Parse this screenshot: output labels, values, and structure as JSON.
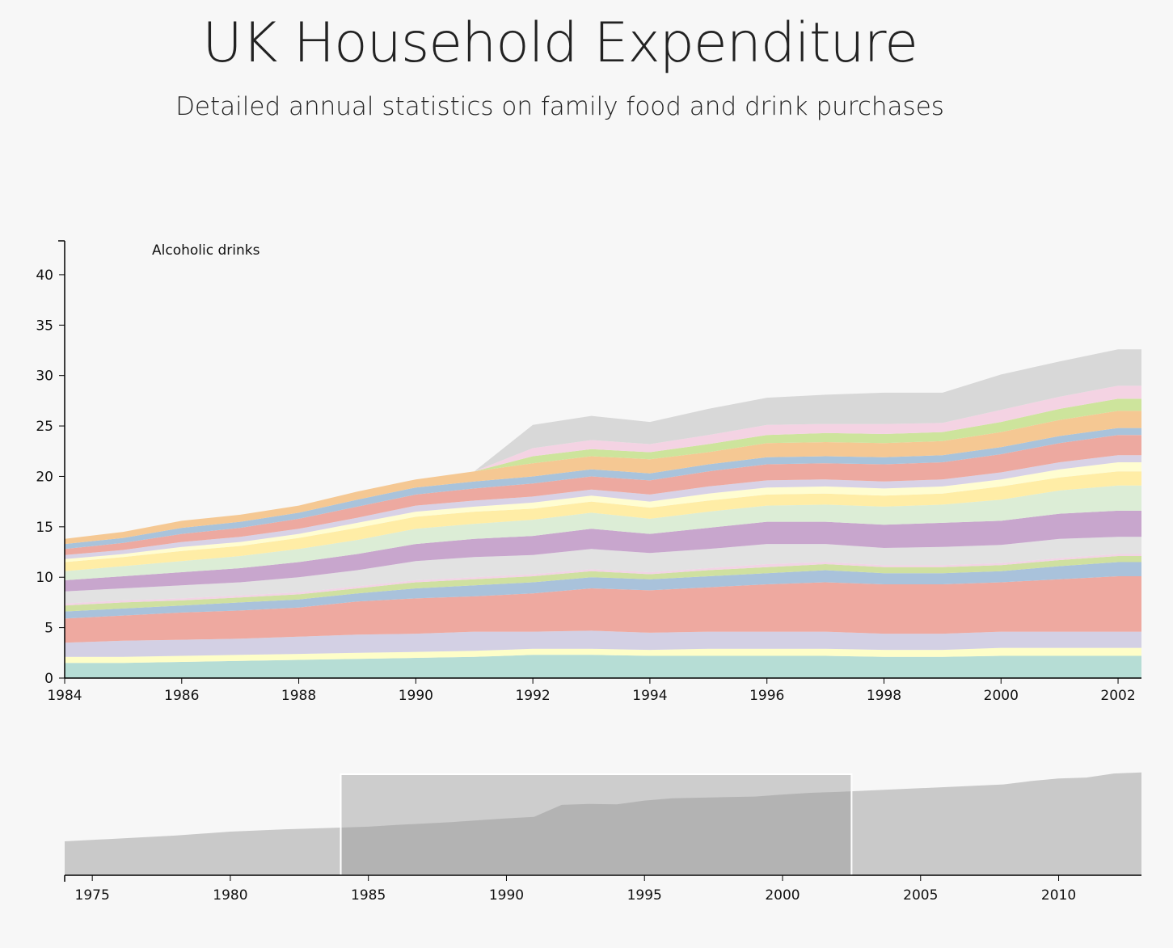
{
  "header": {
    "title": "UK Household Expenditure",
    "subtitle": "Detailed annual statistics on family food and drink purchases"
  },
  "chart_data": {
    "type": "area",
    "title": "UK Household Expenditure",
    "subtitle": "Detailed annual statistics on family food and drink purchases",
    "hover_label": "Alcoholic drinks",
    "x": [
      1984,
      1985,
      1986,
      1987,
      1988,
      1989,
      1990,
      1991,
      1992,
      1993,
      1994,
      1995,
      1996,
      1997,
      1998,
      1999,
      2000,
      2001,
      2002,
      2003
    ],
    "xlim": [
      1984,
      2002.4
    ],
    "ylim": [
      0,
      44
    ],
    "y_ticks": [
      0,
      5,
      10,
      15,
      20,
      25,
      30,
      35,
      40
    ],
    "x_ticks": [
      1984,
      1986,
      1988,
      1990,
      1992,
      1994,
      1996,
      1998,
      2000,
      2002
    ],
    "grid": false,
    "stacked": true,
    "series": [
      {
        "color": "#b6ddd5",
        "values": [
          1.5,
          1.5,
          1.6,
          1.7,
          1.8,
          1.9,
          2.0,
          2.1,
          2.3,
          2.3,
          2.2,
          2.2,
          2.2,
          2.2,
          2.1,
          2.1,
          2.2,
          2.2,
          2.2,
          2.2
        ]
      },
      {
        "color": "#fefec8",
        "values": [
          0.6,
          0.6,
          0.6,
          0.6,
          0.6,
          0.6,
          0.6,
          0.6,
          0.6,
          0.6,
          0.6,
          0.7,
          0.7,
          0.7,
          0.7,
          0.7,
          0.8,
          0.8,
          0.8,
          0.8
        ]
      },
      {
        "color": "#d3d0e4",
        "values": [
          1.4,
          1.6,
          1.6,
          1.6,
          1.7,
          1.8,
          1.8,
          1.9,
          1.7,
          1.8,
          1.7,
          1.7,
          1.7,
          1.7,
          1.6,
          1.6,
          1.6,
          1.6,
          1.6,
          1.6
        ]
      },
      {
        "color": "#eea9a0",
        "values": [
          2.4,
          2.5,
          2.7,
          2.8,
          2.9,
          3.3,
          3.5,
          3.5,
          3.8,
          4.2,
          4.2,
          4.4,
          4.7,
          4.9,
          4.9,
          4.9,
          4.9,
          5.2,
          5.5,
          5.5
        ]
      },
      {
        "color": "#a9c2db",
        "values": [
          0.7,
          0.7,
          0.7,
          0.8,
          0.8,
          0.8,
          1.0,
          1.1,
          1.1,
          1.1,
          1.1,
          1.1,
          1.1,
          1.2,
          1.1,
          1.1,
          1.1,
          1.3,
          1.4,
          1.4
        ]
      },
      {
        "color": "#cfe0a0",
        "values": [
          0.6,
          0.6,
          0.5,
          0.5,
          0.5,
          0.5,
          0.6,
          0.6,
          0.6,
          0.6,
          0.5,
          0.6,
          0.6,
          0.6,
          0.6,
          0.6,
          0.6,
          0.6,
          0.6,
          0.6
        ]
      },
      {
        "color": "#f2d3e5",
        "values": [
          0.2,
          0.2,
          0.2,
          0.2,
          0.2,
          0.2,
          0.2,
          0.2,
          0.2,
          0.2,
          0.2,
          0.2,
          0.3,
          0.2,
          0.2,
          0.2,
          0.2,
          0.2,
          0.2,
          0.2
        ]
      },
      {
        "color": "#e2e2e2",
        "values": [
          1.2,
          1.2,
          1.3,
          1.3,
          1.5,
          1.6,
          1.9,
          2.0,
          1.9,
          2.0,
          1.9,
          1.9,
          2.0,
          1.8,
          1.7,
          1.8,
          1.8,
          1.9,
          1.7,
          1.7
        ]
      },
      {
        "color": "#c8a6cd",
        "values": [
          1.1,
          1.2,
          1.3,
          1.4,
          1.5,
          1.6,
          1.7,
          1.8,
          1.9,
          2.0,
          1.9,
          2.1,
          2.2,
          2.2,
          2.3,
          2.4,
          2.4,
          2.5,
          2.6,
          2.6
        ]
      },
      {
        "color": "#dcedd6",
        "values": [
          0.9,
          1.0,
          1.1,
          1.2,
          1.3,
          1.4,
          1.5,
          1.5,
          1.6,
          1.6,
          1.5,
          1.6,
          1.6,
          1.7,
          1.8,
          1.8,
          2.1,
          2.3,
          2.5,
          2.5
        ]
      },
      {
        "color": "#ffeda6",
        "values": [
          0.9,
          0.9,
          1.0,
          1.0,
          1.1,
          1.2,
          1.2,
          1.2,
          1.1,
          1.1,
          1.1,
          1.1,
          1.1,
          1.1,
          1.1,
          1.1,
          1.3,
          1.3,
          1.4,
          1.4
        ]
      },
      {
        "color": "#fffdd1",
        "values": [
          0.3,
          0.3,
          0.4,
          0.4,
          0.4,
          0.5,
          0.5,
          0.5,
          0.6,
          0.6,
          0.6,
          0.7,
          0.7,
          0.7,
          0.7,
          0.7,
          0.7,
          0.8,
          0.9,
          0.9
        ]
      },
      {
        "color": "#d8d2e6",
        "values": [
          0.4,
          0.4,
          0.5,
          0.5,
          0.5,
          0.5,
          0.6,
          0.6,
          0.6,
          0.6,
          0.7,
          0.7,
          0.7,
          0.7,
          0.7,
          0.7,
          0.7,
          0.7,
          0.7,
          0.7
        ]
      },
      {
        "color": "#eda9a0",
        "values": [
          0.6,
          0.7,
          0.8,
          0.9,
          1.0,
          1.1,
          1.1,
          1.2,
          1.3,
          1.3,
          1.4,
          1.5,
          1.6,
          1.6,
          1.7,
          1.7,
          1.8,
          1.9,
          2.0,
          2.0
        ]
      },
      {
        "color": "#a9c3db",
        "values": [
          0.5,
          0.5,
          0.6,
          0.6,
          0.6,
          0.7,
          0.7,
          0.7,
          0.7,
          0.7,
          0.7,
          0.7,
          0.7,
          0.7,
          0.7,
          0.7,
          0.7,
          0.7,
          0.7,
          0.7
        ]
      },
      {
        "color": "#f5c893",
        "values": [
          0.5,
          0.6,
          0.7,
          0.7,
          0.7,
          0.8,
          0.8,
          1.0,
          1.3,
          1.3,
          1.4,
          1.2,
          1.4,
          1.4,
          1.4,
          1.4,
          1.5,
          1.6,
          1.7,
          1.7
        ]
      },
      {
        "color": "#cde49c",
        "values": [
          0,
          0,
          0,
          0,
          0,
          0,
          0,
          0,
          0.7,
          0.7,
          0.7,
          0.8,
          0.8,
          0.9,
          0.9,
          0.9,
          1.0,
          1.1,
          1.2,
          1.2
        ]
      },
      {
        "color": "#f4d3e3",
        "values": [
          0,
          0,
          0,
          0,
          0,
          0,
          0,
          0,
          0.8,
          0.9,
          0.8,
          0.9,
          1.0,
          0.9,
          1.0,
          0.9,
          1.2,
          1.2,
          1.3,
          1.3
        ]
      },
      {
        "color": "#d8d8d8",
        "values": [
          0,
          0,
          0,
          0,
          0,
          0,
          0,
          0,
          2.3,
          2.4,
          2.2,
          2.6,
          2.7,
          2.9,
          3.1,
          3.0,
          3.5,
          3.5,
          3.6,
          3.6
        ]
      }
    ],
    "overview": {
      "x": [
        1974,
        1976,
        1978,
        1980,
        1982,
        1984,
        1985,
        1986,
        1988,
        1990,
        1991,
        1992,
        1993,
        1994,
        1995,
        1996,
        1998,
        1999,
        2000,
        2001,
        2002,
        2004,
        2006,
        2008,
        2009,
        2010,
        2011,
        2012,
        2013
      ],
      "values": [
        11.8,
        12.8,
        13.8,
        15.2,
        16.0,
        16.6,
        16.9,
        17.5,
        18.5,
        19.8,
        20.3,
        24.5,
        24.8,
        24.7,
        26.0,
        26.8,
        27.2,
        27.4,
        28.1,
        28.7,
        29.0,
        29.9,
        30.7,
        31.6,
        32.8,
        33.7,
        34.0,
        35.4,
        35.8
      ],
      "xlim": [
        1974,
        2013
      ],
      "ylim": [
        0,
        36
      ],
      "x_ticks": [
        1975,
        1980,
        1985,
        1990,
        1995,
        2000,
        2005,
        2010
      ],
      "selection": [
        1984,
        2002.5
      ]
    }
  }
}
